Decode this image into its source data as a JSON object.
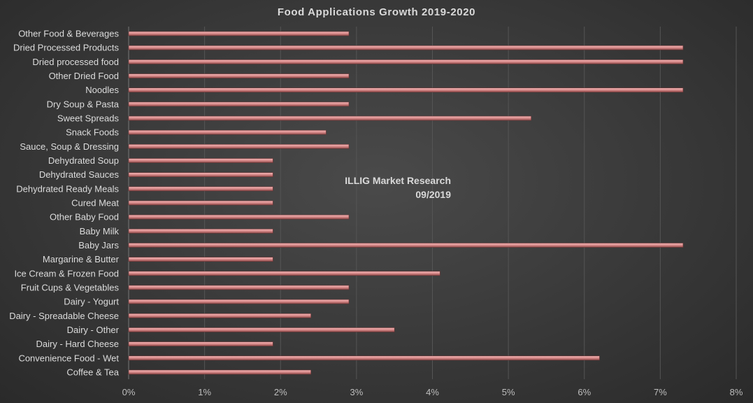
{
  "chart_data": {
    "type": "bar",
    "orientation": "horizontal",
    "title": "Food Applications Growth 2019-2020",
    "categories": [
      "Other Food & Beverages",
      "Dried Processed Products",
      "Dried processed food",
      "Other Dried Food",
      "Noodles",
      "Dry Soup & Pasta",
      "Sweet Spreads",
      "Snack Foods",
      "Sauce, Soup & Dressing",
      "Dehydrated Soup",
      "Dehydrated Sauces",
      "Dehydrated Ready Meals",
      "Cured Meat",
      "Other Baby Food",
      "Baby Milk",
      "Baby Jars",
      "Margarine & Butter",
      "Ice Cream & Frozen Food",
      "Fruit Cups & Vegetables",
      "Dairy - Yogurt",
      "Dairy - Spreadable Cheese",
      "Dairy - Other",
      "Dairy - Hard Cheese",
      "Convenience Food - Wet",
      "Coffee & Tea"
    ],
    "values": [
      2.9,
      7.3,
      7.3,
      2.9,
      7.3,
      2.9,
      5.3,
      2.6,
      2.9,
      1.9,
      1.9,
      1.9,
      1.9,
      2.9,
      1.9,
      7.3,
      1.9,
      4.1,
      2.9,
      2.9,
      2.4,
      3.5,
      1.9,
      6.2,
      2.4
    ],
    "x_ticks": [
      "0%",
      "1%",
      "2%",
      "3%",
      "4%",
      "5%",
      "6%",
      "7%",
      "8%"
    ],
    "xlim": [
      0,
      8
    ],
    "unit": "%",
    "grid": "vertical",
    "bar_color": "#d98a8a",
    "annotation": [
      "ILLIG Market Research",
      "09/2019"
    ]
  }
}
